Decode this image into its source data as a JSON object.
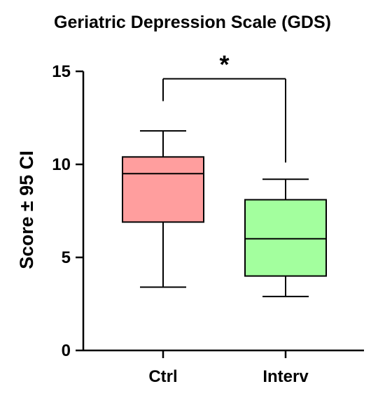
{
  "chart_data": {
    "type": "box",
    "title": "Geriatric Depression Scale (GDS)",
    "xlabel": "",
    "ylabel": "Score  ±  95 CI",
    "ylim": [
      0,
      15
    ],
    "yticks": [
      0,
      5,
      10,
      15
    ],
    "categories": [
      "Ctrl",
      "Interv"
    ],
    "series": [
      {
        "category": "Ctrl",
        "whisker_low": 3.4,
        "q1": 6.9,
        "median": 9.5,
        "q3": 10.4,
        "whisker_high": 11.8,
        "color": "#ff9e9e"
      },
      {
        "category": "Interv",
        "whisker_low": 2.9,
        "q1": 4.0,
        "median": 6.0,
        "q3": 8.1,
        "whisker_high": 9.2,
        "color": "#a3ff9e"
      }
    ],
    "significance": {
      "label": "*",
      "between": [
        "Ctrl",
        "Interv"
      ],
      "ctrl_end": 13.4,
      "interv_end": 10.1,
      "bar": 14.6
    },
    "grid": false,
    "legend": "none"
  }
}
